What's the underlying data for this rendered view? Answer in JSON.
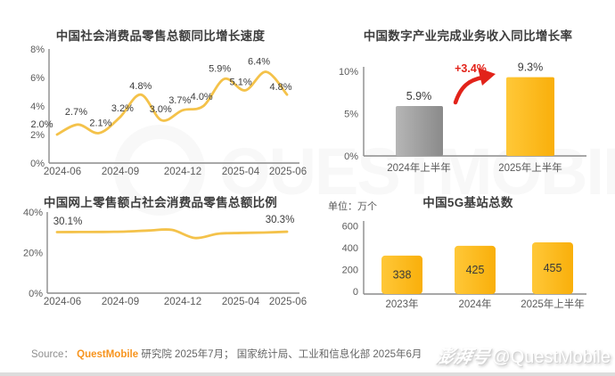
{
  "watermark_center": {
    "text": "QUESTMOBILE"
  },
  "watermark_corner": {
    "platform": "澎湃号",
    "handle": "@QuestMobile"
  },
  "source": {
    "prefix": "Source： ",
    "brand": "QuestMobile",
    "suffix": " 研究院 2025年7月； 国家统计局、工业和信息化部 2025年6月"
  },
  "colors": {
    "gold": "#F9AF0B",
    "gold_light": "#FFC838",
    "gray": "#8A8A8A",
    "gray_light": "#B6B6B6",
    "line_gold": "#F4C24A",
    "red": "#E2231A",
    "axis": "#8C8C8C",
    "tick_text": "#5A5A5A",
    "label_text": "#3C3C3C"
  },
  "chart_data": [
    {
      "type": "line",
      "title": "中国社会消费品零售总额同比增长速度",
      "ylim": [
        0,
        8
      ],
      "y_tick_labels": [
        "8%",
        "6%",
        "4%",
        "2%",
        "0%"
      ],
      "x_tick_labels": [
        "2024-06",
        "2024-09",
        "2024-12",
        "2025-04",
        "2025-06"
      ],
      "values": [
        2.0,
        2.7,
        2.1,
        3.2,
        4.8,
        3.0,
        3.7,
        4.0,
        5.9,
        5.1,
        6.4,
        4.8
      ],
      "point_labels": [
        "2.0%",
        "2.7%",
        "2.1%",
        "3.2%",
        "4.8%",
        "3.0%",
        "3.7%",
        "4.0%",
        "5.9%",
        "5.1%",
        "6.4%",
        "4.8%"
      ]
    },
    {
      "type": "bar",
      "title": "中国数字产业完成业务收入同比增长率",
      "ylim": [
        0,
        10
      ],
      "y_tick_labels": [
        "10%",
        "5%",
        "0%"
      ],
      "categories": [
        "2024年上半年",
        "2025年上半年"
      ],
      "values": [
        5.9,
        9.3
      ],
      "value_labels": [
        "5.9%",
        "9.3%"
      ],
      "bar_styles": [
        "gray",
        "gold"
      ],
      "annotation": {
        "text": "+3.4%"
      }
    },
    {
      "type": "line",
      "title": "中国网上零售额占社会消费品零售总额比例",
      "ylim": [
        0,
        40
      ],
      "y_tick_labels": [
        "40%",
        "20%",
        "0%"
      ],
      "x_tick_labels": [
        "2024-06",
        "2024-09",
        "2024-12",
        "2025-04",
        "2025-06"
      ],
      "values": [
        30.1,
        30.15,
        30.2,
        30.4,
        30.9,
        31.2,
        27.2,
        29.3,
        29.7,
        29.9,
        30.3
      ],
      "start_label": "30.1%",
      "end_label": "30.3%"
    },
    {
      "type": "bar",
      "title": "中国5G基站总数",
      "unit_label": "单位：万个",
      "ylim": [
        0,
        600
      ],
      "y_tick_labels": [
        "600",
        "400",
        "200",
        "0"
      ],
      "categories": [
        "2023年",
        "2024年",
        "2025年上半年"
      ],
      "values": [
        338,
        425,
        455
      ],
      "value_labels": [
        "338",
        "425",
        "455"
      ],
      "bar_styles": [
        "gold",
        "gold",
        "gold"
      ]
    }
  ]
}
